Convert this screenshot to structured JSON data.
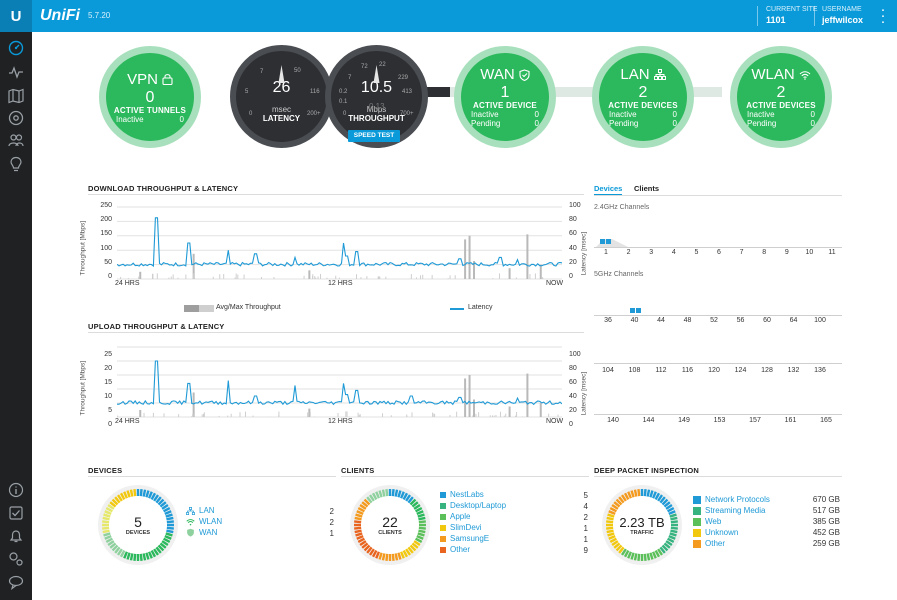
{
  "header": {
    "brand": "UniFi",
    "version": "5.7.20",
    "site_label": "CURRENT SITE",
    "site_value": "1101",
    "user_label": "USERNAME",
    "user_value": "jeffwilcox"
  },
  "sidebar": {
    "items": [
      "dashboard-icon",
      "statistics-icon",
      "map-icon",
      "devices-icon",
      "clients-icon",
      "insights-icon"
    ],
    "bottom": [
      "info-icon",
      "tasks-icon",
      "alerts-icon",
      "settings-icon",
      "chat-icon"
    ]
  },
  "topology": {
    "vpn": {
      "title": "VPN",
      "count": "0",
      "label": "ACTIVE TUNNELS",
      "rows": [
        [
          "Inactive",
          "0"
        ]
      ]
    },
    "latency": {
      "value": "26",
      "unit": "msec",
      "label": "LATENCY",
      "scale": [
        "7",
        "50",
        "5",
        "0",
        "116",
        "200+"
      ]
    },
    "throughput": {
      "value": "10.5",
      "sub": "0.13",
      "unit": "Mbps",
      "label": "THROUGHPUT",
      "scale": [
        "72",
        "22",
        "7",
        "229",
        "0.2",
        "413",
        "0.1",
        "700+",
        "0"
      ]
    },
    "speed_test": "SPEED TEST",
    "wan": {
      "title": "WAN",
      "count": "1",
      "label": "ACTIVE DEVICE",
      "rows": [
        [
          "Inactive",
          "0"
        ],
        [
          "Pending",
          "0"
        ]
      ]
    },
    "lan": {
      "title": "LAN",
      "count": "2",
      "label": "ACTIVE DEVICES",
      "rows": [
        [
          "Inactive",
          "0"
        ],
        [
          "Pending",
          "0"
        ]
      ]
    },
    "wlan": {
      "title": "WLAN",
      "count": "2",
      "label": "ACTIVE DEVICES",
      "rows": [
        [
          "Inactive",
          "0"
        ],
        [
          "Pending",
          "0"
        ]
      ]
    }
  },
  "download": {
    "title": "DOWNLOAD THROUGHPUT & LATENCY",
    "y_left": [
      "250",
      "200",
      "150",
      "100",
      "50",
      "0"
    ],
    "y_right": [
      "100",
      "80",
      "60",
      "40",
      "20",
      "0"
    ],
    "x": [
      "24 HRS",
      "12 HRS",
      "NOW"
    ],
    "ylabel_left": "Throughput [Mbps]",
    "ylabel_right": "Latency [msec]",
    "legend_throughput": "Avg/Max Throughput",
    "legend_latency": "Latency"
  },
  "upload": {
    "title": "UPLOAD THROUGHPUT & LATENCY",
    "y_left": [
      "25",
      "20",
      "15",
      "10",
      "5",
      "0"
    ],
    "y_right": [
      "100",
      "80",
      "60",
      "40",
      "20",
      "0"
    ],
    "x": [
      "24 HRS",
      "12 HRS",
      "NOW"
    ],
    "ylabel_left": "Throughput [Mbps]",
    "ylabel_right": "Latency [msec]"
  },
  "channels": {
    "tabs": [
      "Devices",
      "Clients"
    ],
    "ghz24_title": "2.4GHz Channels",
    "ghz24": [
      "1",
      "2",
      "3",
      "4",
      "5",
      "6",
      "7",
      "8",
      "9",
      "10",
      "11"
    ],
    "ghz5_title": "5GHz Channels",
    "ghz5_row1": [
      "36",
      "40",
      "44",
      "48",
      "52",
      "56",
      "60",
      "64",
      "100"
    ],
    "ghz5_row2": [
      "104",
      "108",
      "112",
      "116",
      "120",
      "124",
      "128",
      "132",
      "136"
    ],
    "ghz5_row3": [
      "140",
      "144",
      "149",
      "153",
      "157",
      "161",
      "165"
    ]
  },
  "devices": {
    "title": "DEVICES",
    "total": "5",
    "total_label": "DEVICES",
    "items": [
      {
        "name": "LAN",
        "value": "2",
        "icon": "lan-icon"
      },
      {
        "name": "WLAN",
        "value": "2",
        "icon": "wifi-icon"
      },
      {
        "name": "WAN",
        "value": "1",
        "icon": "shield-icon"
      }
    ]
  },
  "clients": {
    "title": "CLIENTS",
    "total": "22",
    "total_label": "CLIENTS",
    "items": [
      {
        "name": "NestLabs",
        "value": "5"
      },
      {
        "name": "Desktop/Laptop",
        "value": "4"
      },
      {
        "name": "Apple",
        "value": "2"
      },
      {
        "name": "SlimDevi",
        "value": "1"
      },
      {
        "name": "SamsungE",
        "value": "1"
      },
      {
        "name": "Other",
        "value": "9"
      }
    ]
  },
  "dpi": {
    "title": "DEEP PACKET INSPECTION",
    "total": "2.23 TB",
    "total_label": "TRAFFIC",
    "items": [
      {
        "name": "Network Protocols",
        "value": "670 GB",
        "color": "#1f9ad6"
      },
      {
        "name": "Streaming Media",
        "value": "517 GB",
        "color": "#36b37e"
      },
      {
        "name": "Web",
        "value": "385 GB",
        "color": "#5cc05a"
      },
      {
        "name": "Unknown",
        "value": "452 GB",
        "color": "#f2c80f"
      },
      {
        "name": "Other",
        "value": "259 GB",
        "color": "#f39a1f"
      }
    ]
  },
  "colors": {
    "accent": "#0b9ad9",
    "green": "#2cb85c",
    "latency": "#1f9ad6"
  }
}
